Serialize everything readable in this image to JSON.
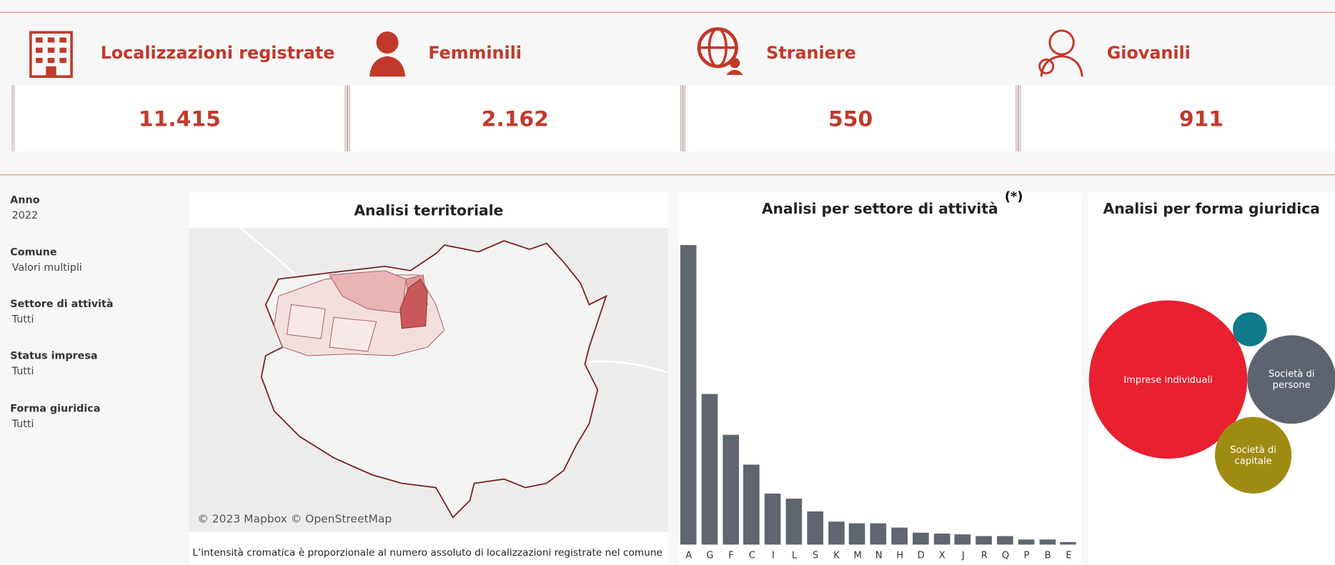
{
  "kpis": [
    {
      "label": "Localizzazioni registrate",
      "value": "11.415"
    },
    {
      "label": "Femminili",
      "value": "2.162"
    },
    {
      "label": "Straniere",
      "value": "550"
    },
    {
      "label": "Giovanili",
      "value": "911"
    }
  ],
  "filters": [
    {
      "label": "Anno",
      "value": "2022"
    },
    {
      "label": "Comune",
      "value": "Valori multipli"
    },
    {
      "label": "Settore di attività",
      "value": "Tutti"
    },
    {
      "label": "Status impresa",
      "value": "Tutti"
    },
    {
      "label": "Forma giuridica",
      "value": "Tutti"
    }
  ],
  "map_panel": {
    "title": "Analisi territoriale",
    "attribution": "© 2023 Mapbox © OpenStreetMap",
    "caption": "L’intensità cromatica è proporzionale al numero assoluto di localizzazioni registrate nel comune"
  },
  "sector_chart": {
    "type": "bar",
    "title": "Analisi per settore di attività",
    "note": "(*)",
    "categories": [
      "A",
      "G",
      "F",
      "C",
      "I",
      "L",
      "S",
      "K",
      "M",
      "N",
      "H",
      "D",
      "X",
      "J",
      "R",
      "Q",
      "P",
      "B",
      "E"
    ],
    "values": [
      3730,
      1880,
      1370,
      1000,
      640,
      570,
      410,
      290,
      265,
      265,
      210,
      150,
      140,
      125,
      105,
      105,
      65,
      65,
      30
    ],
    "color": "#5f6670"
  },
  "legal_form_chart": {
    "type": "bubble",
    "title": "Analisi per forma giuridica",
    "categories": [
      "Imprese individuali",
      "Società di persone",
      "Società di capitale",
      null
    ],
    "values": [
      7160,
      2240,
      1680,
      330
    ],
    "colors": [
      "#e8202f",
      "#5d6470",
      "#a08b12",
      "#0e7a8a"
    ]
  }
}
